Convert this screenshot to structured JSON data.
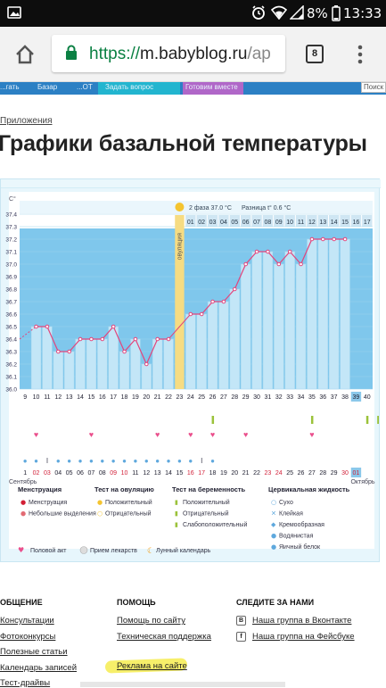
{
  "status_bar": {
    "battery": "8%",
    "time": "13:33"
  },
  "browser": {
    "url_scheme": "https://",
    "url_host": "m.babyblog.ru",
    "url_path": "/ap",
    "tab_count": "8"
  },
  "nav_tabs": [
    "...гать",
    "Базар",
    "...ОТ",
    "Задать вопрос",
    "Готовим вместе",
    "Поиск"
  ],
  "breadcrumb": "Приложения",
  "page_title": "Графики базальной температуры",
  "chart_data": {
    "type": "line",
    "title": "",
    "ylabel": "C°",
    "ylim": [
      36.0,
      37.4
    ],
    "y_ticks": [
      "37.4",
      "37.3",
      "37.2",
      "37.1",
      "37.0",
      "36.9",
      "36.8",
      "36.7",
      "36.6",
      "36.5",
      "36.4",
      "36.3",
      "36.2",
      "36.1",
      "36.0"
    ],
    "ovulation_label": "овуляция",
    "phase_info": {
      "phase": "2 фаза",
      "phase_temp": "37.0 °С",
      "diff_label": "Разница t°",
      "diff_value": "0.6 °С"
    },
    "cycle_days": [
      "01",
      "02",
      "03",
      "04",
      "05",
      "06",
      "07",
      "08",
      "09",
      "10",
      "11",
      "12",
      "13",
      "14",
      "15",
      "16",
      "17"
    ],
    "x_ticks": [
      "9",
      "10",
      "11",
      "12",
      "13",
      "14",
      "15",
      "16",
      "17",
      "18",
      "19",
      "20",
      "21",
      "22",
      "23",
      "24",
      "25",
      "26",
      "27",
      "28",
      "29",
      "30",
      "31",
      "32",
      "33",
      "34",
      "35",
      "36",
      "37",
      "38",
      "39",
      "40"
    ],
    "series": [
      {
        "values": [
          null,
          36.5,
          36.5,
          36.3,
          36.3,
          36.4,
          36.4,
          36.4,
          36.5,
          36.3,
          36.4,
          36.2,
          36.4,
          36.4,
          null,
          36.6,
          36.6,
          36.7,
          36.7,
          36.8,
          37.0,
          37.1,
          37.1,
          37.0,
          37.1,
          37.0,
          37.2,
          37.2,
          37.2,
          37.2,
          null,
          null
        ]
      }
    ],
    "dates": [
      "1",
      "02",
      "03",
      "04",
      "05",
      "06",
      "07",
      "08",
      "09",
      "10",
      "11",
      "12",
      "13",
      "14",
      "15",
      "16",
      "17",
      "18",
      "19",
      "20",
      "21",
      "22",
      "23",
      "24",
      "25",
      "26",
      "27",
      "28",
      "29",
      "30",
      "01",
      ""
    ],
    "month_start": "Сентябрь",
    "month_end": "Октябрь",
    "legend": {
      "menstruation": {
        "title": "Менструация",
        "items": [
          "Менструация",
          "Небольшие выделения"
        ]
      },
      "ovulation_test": {
        "title": "Тест на овуляцию",
        "items": [
          "Положительный",
          "Отрицательный"
        ]
      },
      "pregnancy_test": {
        "title": "Тест на беременность",
        "items": [
          "Положительный",
          "Отрицательный",
          "Слабоположительный"
        ]
      },
      "cervical_fluid": {
        "title": "Цервикальная жидкость",
        "items": [
          "Сухо",
          "Клейкая",
          "Кремообразная",
          "Водянистая",
          "Яичный белок"
        ]
      },
      "extra": [
        "Половой акт",
        "Прием лекарств",
        "Лунный календарь"
      ]
    },
    "colors": {
      "plot_bg": "#7fc7ec",
      "bar": "#c3e6f7",
      "line": "#e2457c",
      "ovulation": "#f6dc82",
      "day_label_bg": "#cfe6f3",
      "today": "#8bc8ea"
    }
  },
  "footer": {
    "col1": {
      "title": "ОБЩЕНИЕ",
      "links": [
        "Консультации",
        "Фотоконкурсы",
        "Полезные статьи",
        "Календарь записей",
        "Тест-драйвы"
      ]
    },
    "col2": {
      "title": "ПОМОЩЬ",
      "links": [
        "Помощь по сайту",
        "Техническая поддержка",
        "Реклама на сайте"
      ]
    },
    "col3": {
      "title": "СЛЕДИТЕ ЗА НАМИ",
      "links": [
        "Наша группа в Вконтакте",
        "Наша группа на Фейсбуке"
      ]
    }
  }
}
